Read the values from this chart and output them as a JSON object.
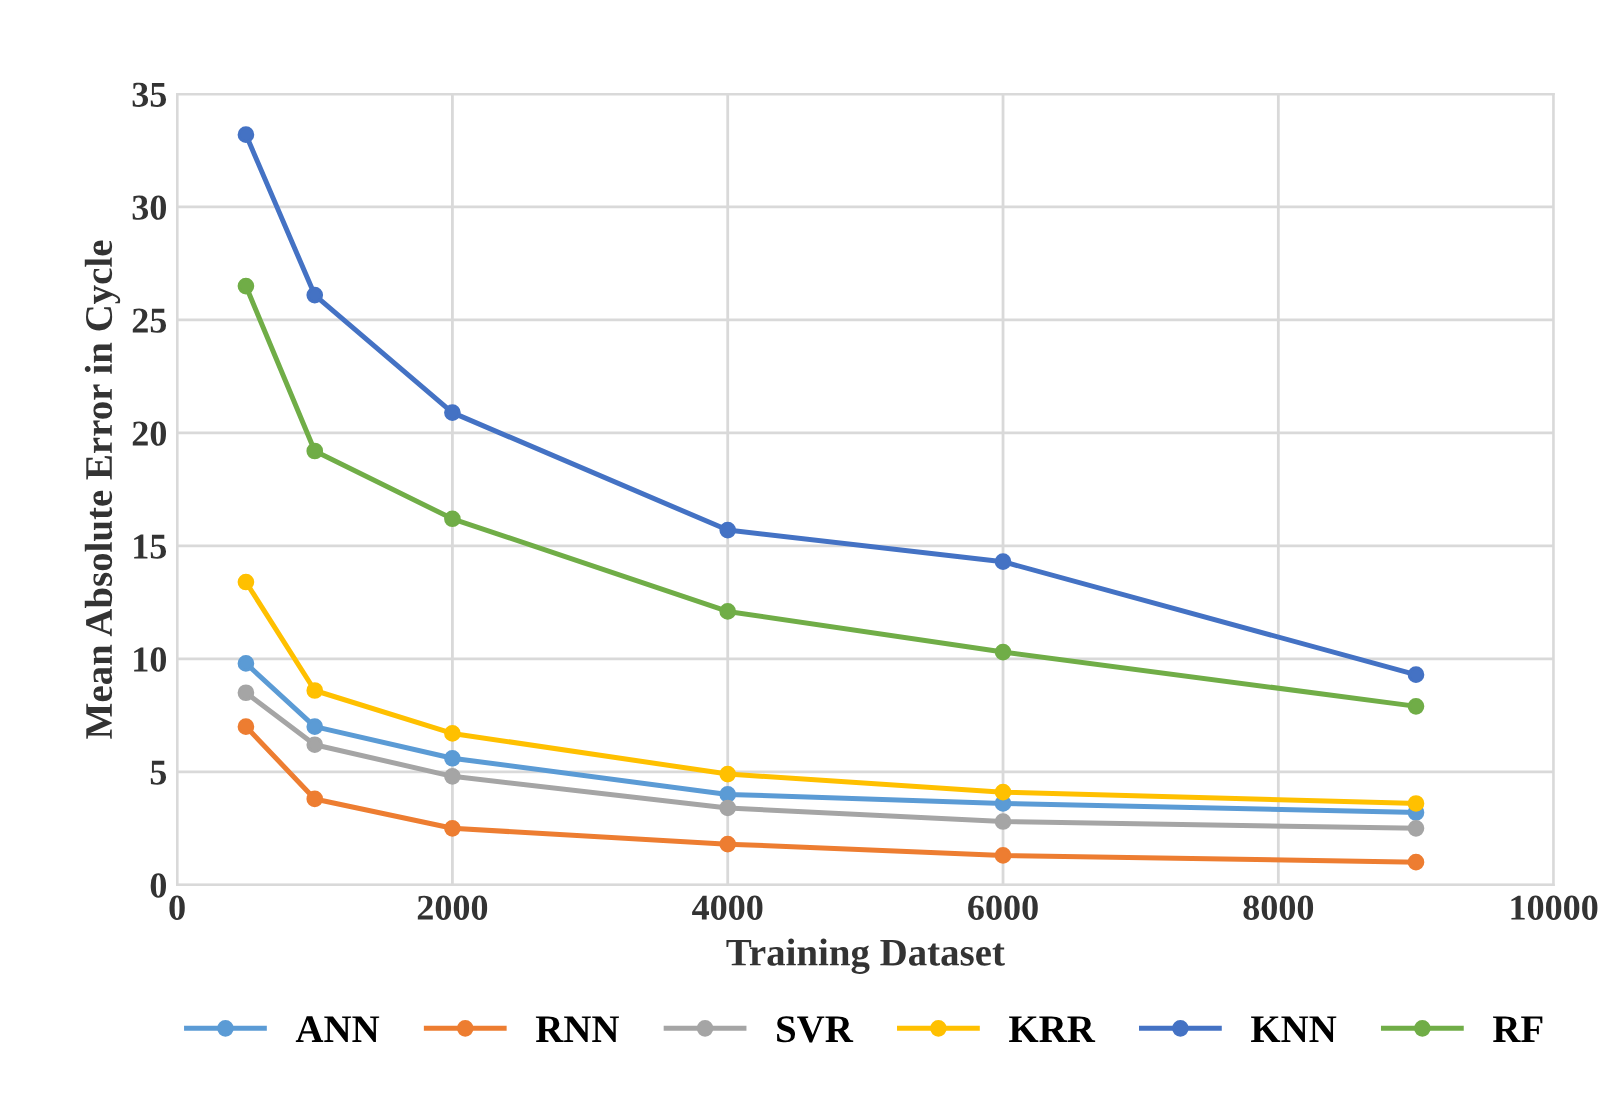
{
  "chart_data": {
    "type": "line",
    "xlabel": "Training Dataset",
    "ylabel": "Mean Absolute Error in Cycle",
    "x": [
      500,
      1000,
      2000,
      4000,
      6000,
      9000
    ],
    "series": [
      {
        "name": "ANN",
        "color": "#5b9bd5",
        "values": [
          9.8,
          7.0,
          5.6,
          4.0,
          3.6,
          3.2
        ]
      },
      {
        "name": "RNN",
        "color": "#ed7d31",
        "values": [
          7.0,
          3.8,
          2.5,
          1.8,
          1.3,
          1.0
        ]
      },
      {
        "name": "SVR",
        "color": "#a5a5a5",
        "values": [
          8.5,
          6.2,
          4.8,
          3.4,
          2.8,
          2.5
        ]
      },
      {
        "name": "KRR",
        "color": "#ffc000",
        "values": [
          13.4,
          8.6,
          6.7,
          4.9,
          4.1,
          3.6
        ]
      },
      {
        "name": "KNN",
        "color": "#4472c4",
        "values": [
          33.2,
          26.1,
          20.9,
          15.7,
          14.3,
          9.3
        ]
      },
      {
        "name": "RF",
        "color": "#70ad47",
        "values": [
          26.5,
          19.2,
          16.2,
          12.1,
          10.3,
          7.9
        ]
      }
    ],
    "xlim": [
      0,
      10000
    ],
    "xticks": [
      0,
      2000,
      4000,
      6000,
      8000,
      10000
    ],
    "ylim": [
      0,
      35
    ],
    "yticks": [
      0,
      5,
      10,
      15,
      20,
      25,
      30,
      35
    ],
    "grid": true,
    "legend": "bottom",
    "marker": "circle",
    "line_style": "solid"
  }
}
